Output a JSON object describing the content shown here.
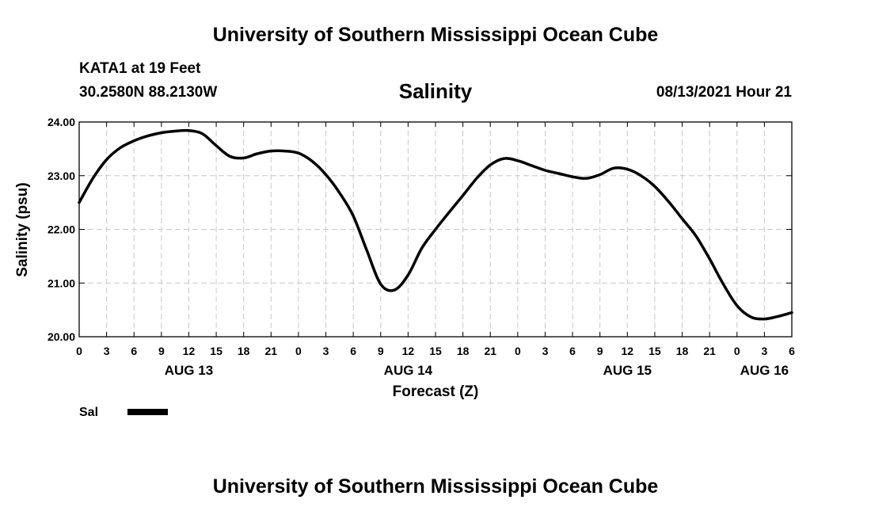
{
  "header": {
    "title": "University of Southern Mississippi Ocean Cube",
    "station": "KATA1 at 19 Feet",
    "coordinates": "30.2580N  88.2130W",
    "timestamp": "08/13/2021 Hour 21"
  },
  "footer": {
    "title": "University of Southern Mississippi Ocean Cube"
  },
  "chart_data": {
    "type": "line",
    "title": "Salinity",
    "xlabel": "Forecast (Z)",
    "ylabel": "Salinity (psu)",
    "xlim": [
      0,
      78
    ],
    "ylim": [
      20,
      24
    ],
    "grid": true,
    "legend_position": "bottom-left",
    "x_tick_hours": [
      0,
      3,
      6,
      9,
      12,
      15,
      18,
      21,
      24,
      27,
      30,
      33,
      36,
      39,
      42,
      45,
      48,
      51,
      54,
      57,
      60,
      63,
      66,
      69,
      72,
      75,
      78
    ],
    "x_tick_labels": [
      "0",
      "3",
      "6",
      "9",
      "12",
      "15",
      "18",
      "21",
      "0",
      "3",
      "6",
      "9",
      "12",
      "15",
      "18",
      "21",
      "0",
      "3",
      "6",
      "9",
      "12",
      "15",
      "18",
      "21",
      "0",
      "3",
      "6"
    ],
    "date_labels": [
      {
        "hour": 12,
        "label": "AUG 13"
      },
      {
        "hour": 36,
        "label": "AUG 14"
      },
      {
        "hour": 60,
        "label": "AUG 15"
      },
      {
        "hour": 75,
        "label": "AUG 16"
      }
    ],
    "y_ticks": [
      "20.00",
      "21.00",
      "22.00",
      "23.00",
      "24.00"
    ],
    "y_tick_values": [
      20,
      21,
      22,
      23,
      24
    ],
    "series": [
      {
        "name": "Sal",
        "color": "#000000",
        "x": [
          0,
          1.5,
          3,
          4.5,
          6,
          7.5,
          9,
          10.5,
          12,
          13.5,
          15,
          16.5,
          18,
          19.5,
          21,
          22.5,
          24,
          25.5,
          27,
          28.5,
          30,
          31.5,
          33,
          34.5,
          36,
          37.5,
          39,
          40.5,
          42,
          43.5,
          45,
          46.5,
          48,
          49.5,
          51,
          52.5,
          54,
          55.5,
          57,
          58.5,
          60,
          61.5,
          63,
          64.5,
          66,
          67.5,
          69,
          70.5,
          72,
          73.5,
          75,
          76.5,
          78
        ],
        "y": [
          22.5,
          22.95,
          23.3,
          23.52,
          23.65,
          23.74,
          23.8,
          23.83,
          23.84,
          23.78,
          23.56,
          23.36,
          23.33,
          23.41,
          23.46,
          23.46,
          23.42,
          23.27,
          23.02,
          22.68,
          22.25,
          21.6,
          20.98,
          20.87,
          21.15,
          21.65,
          22.0,
          22.32,
          22.63,
          22.95,
          23.2,
          23.32,
          23.28,
          23.19,
          23.1,
          23.04,
          22.98,
          22.95,
          23.02,
          23.14,
          23.12,
          23.0,
          22.8,
          22.52,
          22.2,
          21.88,
          21.45,
          20.98,
          20.58,
          20.37,
          20.33,
          20.38,
          20.45
        ]
      }
    ]
  }
}
